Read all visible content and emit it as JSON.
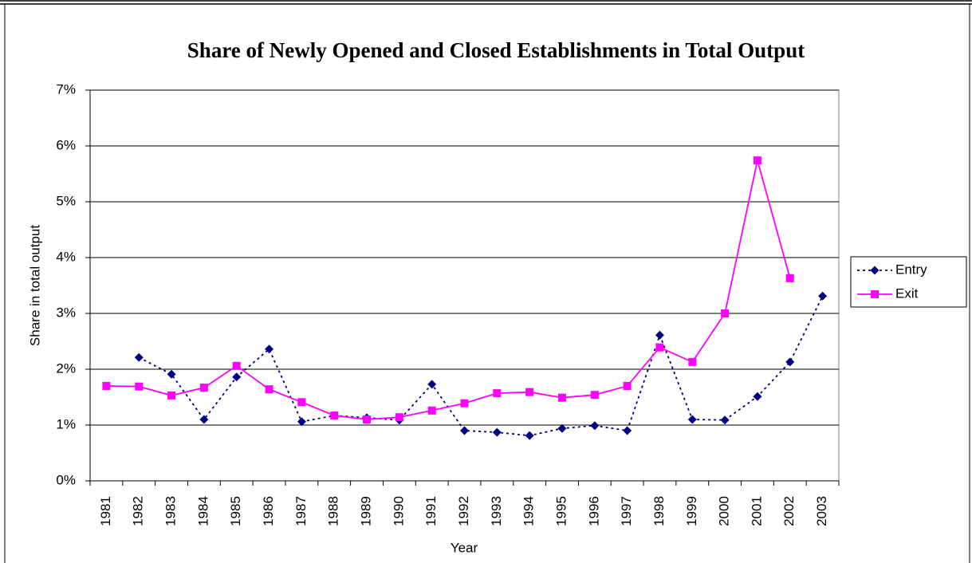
{
  "chart_data": {
    "type": "line",
    "title": "Share of Newly Opened and Closed Establishments in Total Output",
    "x_label": "Year",
    "y_label": "Share in total output",
    "categories": [
      "1981",
      "1982",
      "1983",
      "1984",
      "1985",
      "1986",
      "1987",
      "1988",
      "1989",
      "1990",
      "1991",
      "1992",
      "1993",
      "1994",
      "1995",
      "1996",
      "1997",
      "1998",
      "1999",
      "2000",
      "2001",
      "2002",
      "2003"
    ],
    "series": [
      {
        "name": "Entry",
        "color": "#000080",
        "dash": true,
        "marker": "diamond",
        "values": [
          null,
          2.21,
          1.91,
          1.1,
          1.86,
          2.36,
          1.06,
          1.17,
          1.13,
          1.09,
          1.73,
          0.9,
          0.87,
          0.81,
          0.94,
          0.99,
          0.9,
          2.61,
          1.1,
          1.09,
          1.51,
          2.13,
          3.31
        ]
      },
      {
        "name": "Exit",
        "color": "#ff00ff",
        "dash": false,
        "marker": "square",
        "values": [
          1.7,
          1.69,
          1.53,
          1.67,
          2.06,
          1.64,
          1.41,
          1.17,
          1.1,
          1.14,
          1.26,
          1.39,
          1.57,
          1.59,
          1.49,
          1.54,
          1.7,
          2.39,
          2.13,
          3.0,
          5.74,
          3.63,
          null
        ]
      }
    ],
    "ylim": [
      0,
      7
    ],
    "yticks": [
      {
        "value": 0,
        "label": "0%"
      },
      {
        "value": 1,
        "label": "1%"
      },
      {
        "value": 2,
        "label": "2%"
      },
      {
        "value": 3,
        "label": "3%"
      },
      {
        "value": 4,
        "label": "4%"
      },
      {
        "value": 5,
        "label": "5%"
      },
      {
        "value": 6,
        "label": "6%"
      },
      {
        "value": 7,
        "label": "7%"
      }
    ],
    "grid": true,
    "legend": "right"
  }
}
